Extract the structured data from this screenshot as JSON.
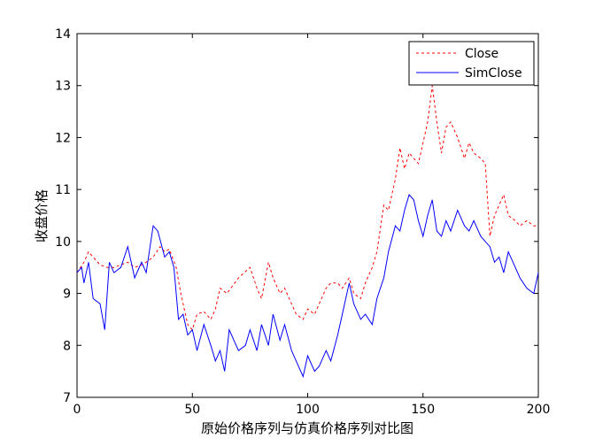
{
  "chart_data": {
    "type": "line",
    "xlabel": "原始价格序列与仿真价格序列对比图",
    "ylabel": "收盘价格",
    "xlim": [
      0,
      200
    ],
    "ylim": [
      7,
      14
    ],
    "xticks": [
      0,
      50,
      100,
      150,
      200
    ],
    "yticks": [
      7,
      8,
      9,
      10,
      11,
      12,
      13,
      14
    ],
    "grid": false,
    "legend_position": "top-right",
    "series": [
      {
        "name": "Close",
        "color": "#ff0000",
        "style": "dashed",
        "x": [
          0,
          3,
          5,
          7,
          10,
          13,
          16,
          19,
          22,
          25,
          28,
          30,
          33,
          36,
          38,
          40,
          43,
          45,
          48,
          50,
          52,
          55,
          58,
          60,
          62,
          65,
          70,
          75,
          78,
          80,
          83,
          85,
          88,
          90,
          93,
          95,
          98,
          100,
          103,
          105,
          108,
          110,
          113,
          115,
          118,
          120,
          123,
          125,
          128,
          130,
          133,
          135,
          138,
          140,
          142,
          144,
          146,
          148,
          150,
          152,
          154,
          156,
          158,
          160,
          162,
          165,
          168,
          170,
          172,
          175,
          177,
          179,
          181,
          183,
          185,
          187,
          190,
          192,
          195,
          198,
          200
        ],
        "y": [
          9.4,
          9.6,
          9.8,
          9.7,
          9.55,
          9.5,
          9.5,
          9.55,
          9.6,
          9.5,
          9.55,
          9.6,
          9.7,
          9.9,
          9.8,
          9.85,
          9.5,
          9.0,
          8.4,
          8.3,
          8.6,
          8.65,
          8.5,
          8.7,
          9.1,
          9.0,
          9.3,
          9.5,
          9.1,
          8.9,
          9.6,
          9.3,
          9.0,
          9.1,
          8.8,
          8.6,
          8.5,
          8.7,
          8.6,
          8.8,
          9.1,
          9.2,
          9.2,
          9.1,
          9.3,
          9.0,
          8.9,
          9.2,
          9.5,
          9.8,
          10.7,
          10.6,
          11.2,
          11.8,
          11.4,
          11.7,
          11.6,
          11.5,
          11.9,
          12.3,
          13.0,
          12.3,
          11.7,
          12.2,
          12.3,
          12.0,
          11.6,
          11.9,
          11.7,
          11.6,
          11.5,
          10.1,
          10.5,
          10.7,
          10.9,
          10.5,
          10.4,
          10.3,
          10.4,
          10.3,
          10.3
        ]
      },
      {
        "name": "SimClose",
        "color": "#0000ff",
        "style": "solid",
        "x": [
          0,
          2,
          3,
          5,
          7,
          10,
          12,
          14,
          16,
          19,
          22,
          25,
          28,
          30,
          33,
          35,
          38,
          40,
          42,
          44,
          46,
          48,
          50,
          52,
          55,
          58,
          60,
          62,
          64,
          66,
          68,
          70,
          73,
          75,
          78,
          80,
          83,
          85,
          88,
          90,
          93,
          95,
          98,
          100,
          103,
          105,
          108,
          110,
          113,
          115,
          118,
          120,
          123,
          125,
          128,
          130,
          133,
          135,
          138,
          140,
          142,
          144,
          146,
          148,
          150,
          152,
          154,
          156,
          158,
          160,
          162,
          165,
          168,
          170,
          172,
          175,
          177,
          179,
          181,
          183,
          185,
          187,
          190,
          192,
          195,
          198,
          200
        ],
        "y": [
          9.4,
          9.5,
          9.2,
          9.6,
          8.9,
          8.8,
          8.3,
          9.6,
          9.4,
          9.5,
          9.9,
          9.3,
          9.6,
          9.4,
          10.3,
          10.2,
          9.7,
          9.8,
          9.5,
          8.5,
          8.6,
          8.2,
          8.3,
          7.9,
          8.4,
          8.0,
          7.7,
          7.9,
          7.5,
          8.3,
          8.1,
          7.9,
          8.0,
          8.3,
          7.9,
          8.4,
          8.0,
          8.6,
          8.1,
          8.4,
          7.9,
          7.7,
          7.4,
          7.8,
          7.5,
          7.6,
          7.9,
          7.7,
          8.2,
          8.6,
          9.2,
          8.8,
          8.5,
          8.6,
          8.4,
          8.9,
          9.3,
          9.8,
          10.3,
          10.2,
          10.6,
          10.9,
          10.8,
          10.4,
          10.1,
          10.5,
          10.8,
          10.2,
          10.1,
          10.4,
          10.2,
          10.6,
          10.3,
          10.2,
          10.4,
          10.1,
          10.0,
          9.9,
          9.6,
          9.7,
          9.4,
          9.8,
          9.5,
          9.3,
          9.1,
          9.0,
          9.4
        ]
      }
    ]
  }
}
